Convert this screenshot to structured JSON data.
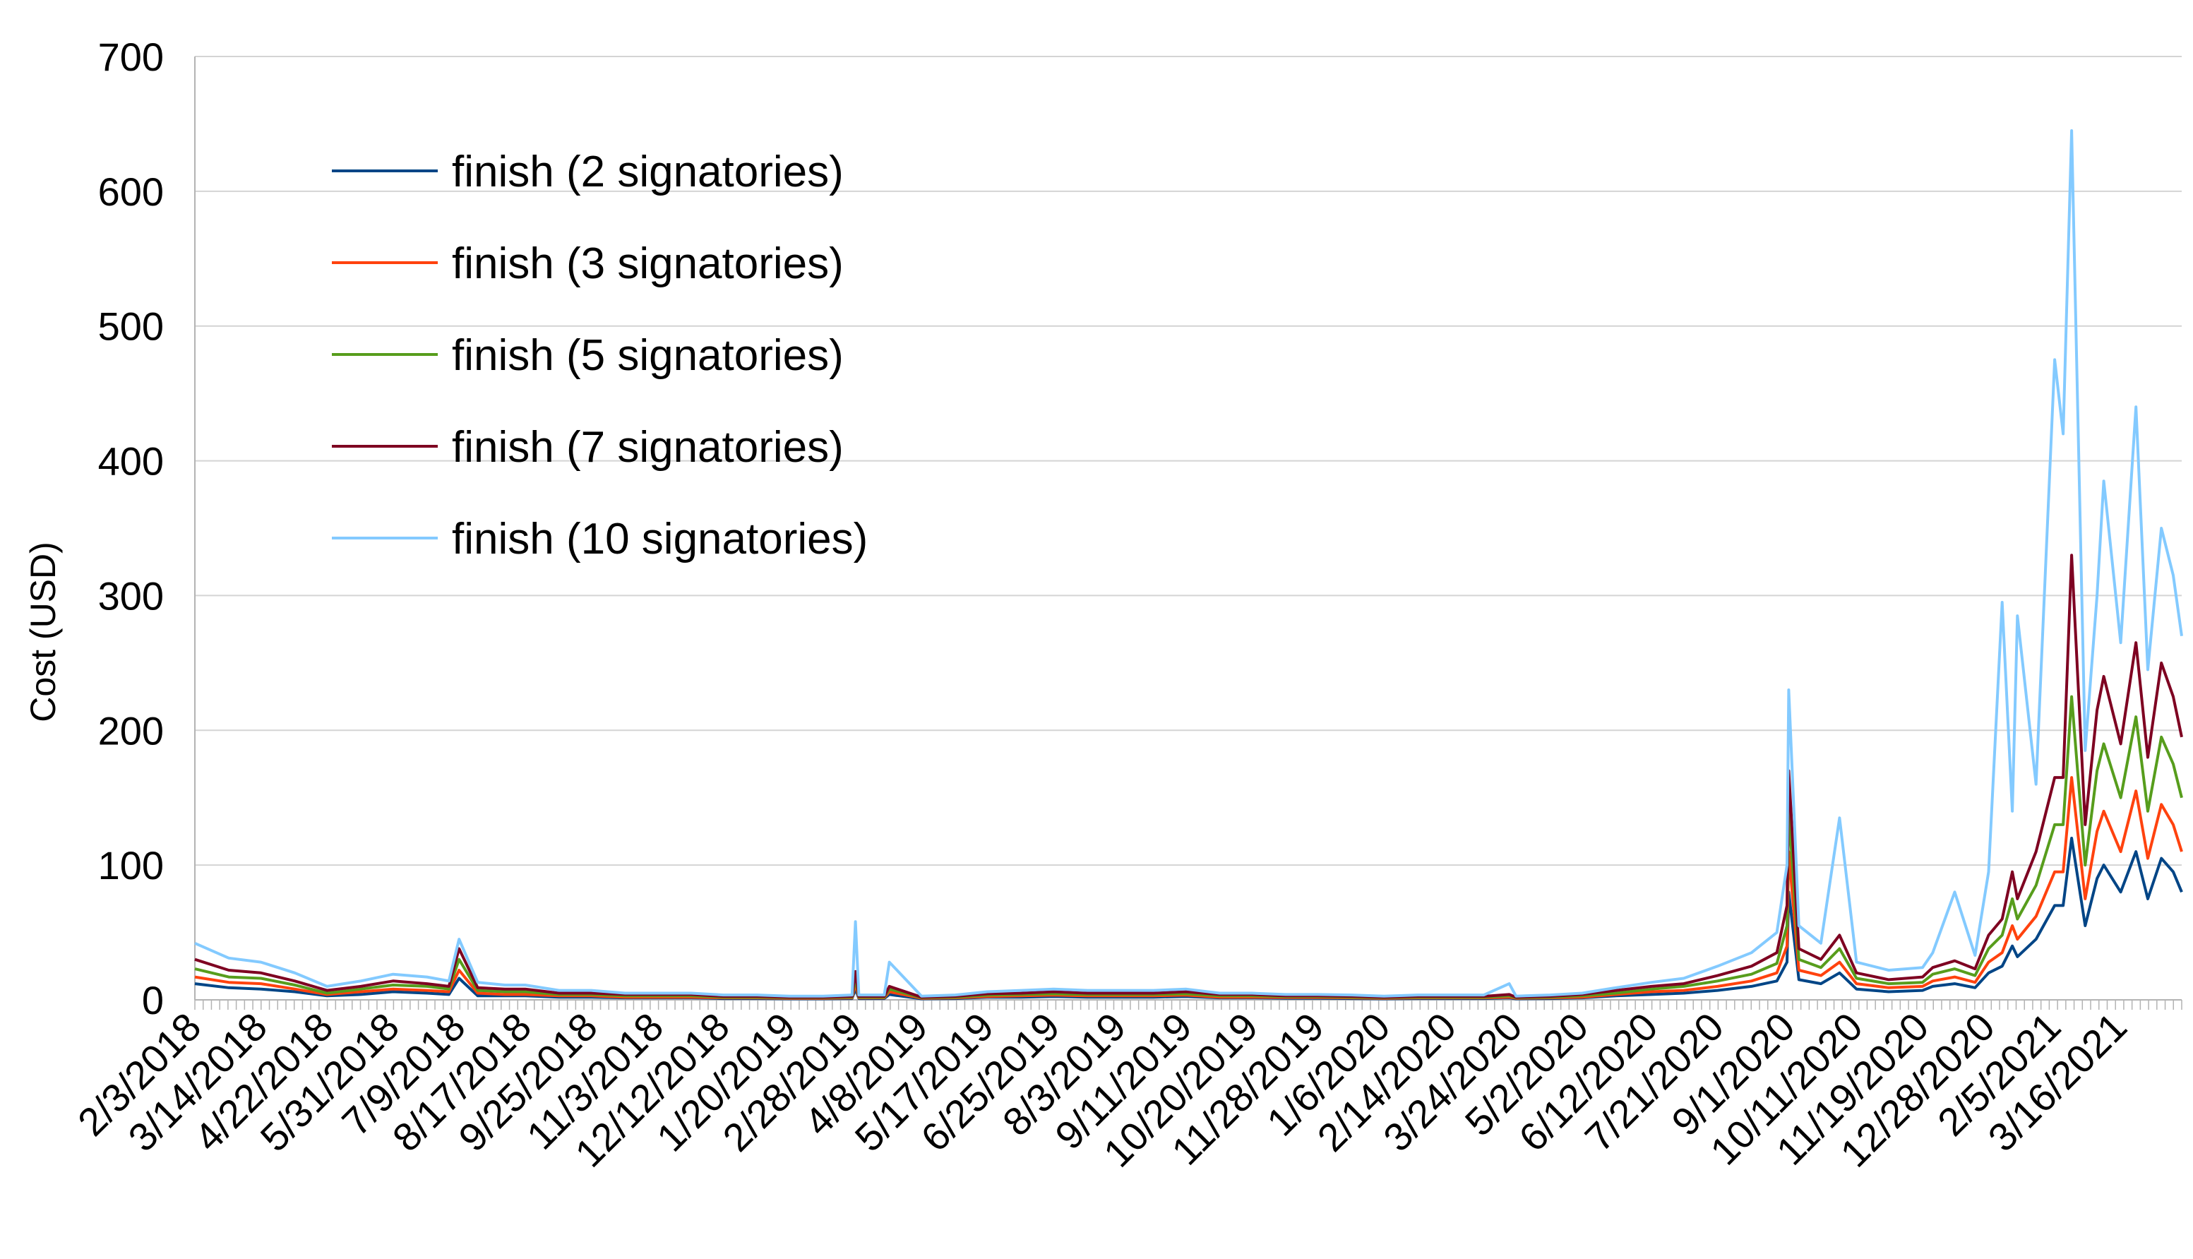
{
  "chart_data": {
    "type": "line",
    "title": "",
    "xlabel": "",
    "ylabel": "Cost (USD)",
    "ylim": [
      0,
      700
    ],
    "yticks": [
      0,
      100,
      200,
      300,
      400,
      500,
      600,
      700
    ],
    "grid": "horizontal",
    "legend_position": "top-left",
    "x_tick_labels": [
      "2/3/2018",
      "3/14/2018",
      "4/22/2018",
      "5/31/2018",
      "7/9/2018",
      "8/17/2018",
      "9/25/2018",
      "11/3/2018",
      "12/12/2018",
      "1/20/2019",
      "2/28/2019",
      "4/8/2019",
      "5/17/2019",
      "6/25/2019",
      "8/3/2019",
      "9/11/2019",
      "10/20/2019",
      "11/28/2019",
      "1/6/2020",
      "2/14/2020",
      "3/24/2020",
      "5/2/2020",
      "6/12/2020",
      "7/21/2020",
      "9/1/2020",
      "10/11/2020",
      "11/19/2020",
      "12/28/2020",
      "2/5/2021",
      "3/16/2021"
    ],
    "x": [
      "2/3/2018",
      "2/23/2018",
      "3/14/2018",
      "4/3/2018",
      "4/22/2018",
      "5/12/2018",
      "5/31/2018",
      "6/20/2018",
      "7/3/2018",
      "7/9/2018",
      "7/20/2018",
      "8/5/2018",
      "8/17/2018",
      "9/6/2018",
      "9/25/2018",
      "10/15/2018",
      "11/3/2018",
      "11/23/2018",
      "12/12/2018",
      "1/1/2019",
      "1/20/2019",
      "2/9/2019",
      "2/26/2019",
      "2/28/2019",
      "3/2/2019",
      "3/17/2019",
      "3/20/2019",
      "4/8/2019",
      "4/28/2019",
      "5/17/2019",
      "6/6/2019",
      "6/25/2019",
      "7/15/2019",
      "8/3/2019",
      "8/23/2019",
      "9/11/2019",
      "10/1/2019",
      "10/20/2019",
      "11/9/2019",
      "11/28/2019",
      "12/18/2019",
      "1/6/2020",
      "1/26/2020",
      "2/14/2020",
      "3/5/2020",
      "3/20/2020",
      "3/24/2020",
      "4/13/2020",
      "5/2/2020",
      "5/22/2020",
      "6/12/2020",
      "7/1/2020",
      "7/21/2020",
      "8/10/2020",
      "8/25/2020",
      "8/31/2020",
      "9/1/2020",
      "9/7/2020",
      "9/20/2020",
      "10/1/2020",
      "10/11/2020",
      "10/30/2020",
      "11/19/2020",
      "11/25/2020",
      "12/8/2020",
      "12/20/2020",
      "12/28/2020",
      "1/5/2021",
      "1/11/2021",
      "1/14/2021",
      "1/25/2021",
      "2/5/2021",
      "2/10/2021",
      "2/15/2021",
      "2/23/2021",
      "3/2/2021",
      "3/6/2021",
      "3/16/2021",
      "3/25/2021",
      "4/1/2021",
      "4/9/2021",
      "4/16/2021",
      "4/21/2021"
    ],
    "series": [
      {
        "name": "finish (2 signatories)",
        "color": "#004586",
        "values": [
          12,
          9,
          8,
          6,
          3,
          4,
          6,
          5,
          4,
          16,
          3,
          3,
          3,
          2,
          2,
          1.5,
          1.5,
          1.5,
          1,
          1,
          0.8,
          0.8,
          1,
          8,
          1,
          1,
          4,
          0.8,
          1,
          2,
          2,
          2.5,
          2,
          2,
          2,
          2.5,
          1.5,
          1.5,
          1.2,
          1.2,
          1,
          0.8,
          1,
          1,
          1,
          1.5,
          0.8,
          1,
          1.5,
          3,
          4,
          5,
          7,
          10,
          14,
          28,
          80,
          15,
          12,
          20,
          8,
          6,
          7,
          10,
          12,
          9,
          20,
          25,
          40,
          32,
          45,
          70,
          70,
          120,
          55,
          90,
          100,
          80,
          110,
          75,
          105,
          95,
          80
        ]
      },
      {
        "name": "finish (3 signatories)",
        "color": "#ff420e",
        "values": [
          17,
          13,
          12,
          8,
          4,
          6,
          8,
          7,
          6,
          22,
          5,
          4,
          4,
          3,
          3,
          2,
          2,
          2,
          1.5,
          1.5,
          1.2,
          1.2,
          1.5,
          12,
          1.5,
          1.5,
          6,
          1.2,
          1.5,
          2.5,
          3,
          3.5,
          3,
          3,
          3,
          3.5,
          2,
          2,
          1.8,
          1.8,
          1.5,
          1.2,
          1.5,
          1.5,
          1.5,
          2,
          1.2,
          1.5,
          2,
          4,
          6,
          7,
          10,
          14,
          20,
          40,
          110,
          22,
          18,
          28,
          12,
          9,
          10,
          14,
          17,
          13,
          28,
          35,
          55,
          45,
          62,
          95,
          95,
          165,
          75,
          125,
          140,
          110,
          155,
          105,
          145,
          130,
          110
        ]
      },
      {
        "name": "finish (5 signatories)",
        "color": "#579d1c",
        "values": [
          23,
          17,
          16,
          11,
          5,
          8,
          11,
          10,
          8,
          30,
          7,
          6,
          6,
          4,
          4,
          3,
          3,
          3,
          2,
          2,
          1.6,
          1.6,
          2,
          16,
          2,
          2,
          8,
          1.6,
          2,
          3.5,
          4,
          4.5,
          4,
          4,
          4,
          4.5,
          3,
          3,
          2.4,
          2.4,
          2,
          1.6,
          2,
          2,
          2,
          3,
          1.6,
          2,
          3,
          5,
          8,
          10,
          14,
          19,
          27,
          55,
          140,
          30,
          24,
          38,
          16,
          12,
          13,
          19,
          23,
          18,
          38,
          48,
          75,
          60,
          85,
          130,
          130,
          225,
          100,
          170,
          190,
          150,
          210,
          140,
          195,
          175,
          150
        ]
      },
      {
        "name": "finish (7 signatories)",
        "color": "#7e0021",
        "values": [
          30,
          22,
          20,
          14,
          7,
          10,
          14,
          12,
          10,
          38,
          9,
          8,
          8,
          5,
          5,
          4,
          4,
          4,
          2.6,
          2.6,
          2,
          2,
          2.6,
          21,
          2.6,
          2.6,
          10,
          2,
          2.6,
          4.5,
          5,
          6,
          5,
          5,
          5,
          6,
          4,
          4,
          3,
          3,
          2.6,
          2,
          2.6,
          2.6,
          2.6,
          4,
          2,
          2.6,
          4,
          7,
          10,
          12,
          18,
          25,
          35,
          70,
          170,
          38,
          30,
          48,
          20,
          15,
          17,
          24,
          29,
          23,
          48,
          60,
          95,
          75,
          110,
          165,
          165,
          330,
          130,
          215,
          240,
          190,
          265,
          180,
          250,
          225,
          195
        ]
      },
      {
        "name": "finish (10 signatories)",
        "color": "#83caff",
        "values": [
          42,
          31,
          28,
          20,
          10,
          14,
          19,
          17,
          14,
          45,
          13,
          11,
          11,
          7,
          7,
          5,
          5,
          5,
          3.6,
          3.6,
          2.8,
          2.8,
          3.6,
          58,
          3.6,
          3.6,
          28,
          2.8,
          3.6,
          6,
          7,
          8,
          7,
          7,
          7,
          8,
          5,
          5,
          4,
          4,
          3.6,
          2.8,
          3.6,
          3.6,
          3.6,
          12,
          2.8,
          3.6,
          5,
          9,
          13,
          16,
          25,
          35,
          50,
          100,
          230,
          55,
          42,
          135,
          28,
          22,
          24,
          35,
          80,
          33,
          95,
          295,
          140,
          285,
          160,
          475,
          420,
          645,
          185,
          300,
          385,
          265,
          440,
          245,
          350,
          315,
          270
        ]
      }
    ]
  }
}
